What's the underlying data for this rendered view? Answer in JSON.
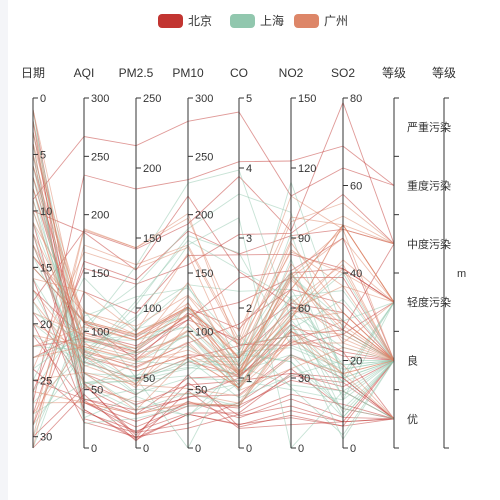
{
  "colors": {
    "axis": "#333333",
    "label": "#333333"
  },
  "chart_data": {
    "type": "parallel",
    "legend": [
      {
        "name": "北京",
        "color": "#c23531"
      },
      {
        "name": "上海",
        "color": "#91c7ae"
      },
      {
        "name": "广州",
        "color": "#dd8668"
      }
    ],
    "axes": [
      {
        "name": "日期",
        "kind": "value",
        "min": 0,
        "max": 31,
        "inverse": true,
        "ticks": [
          0,
          5,
          10,
          15,
          20,
          25,
          30
        ]
      },
      {
        "name": "AQI",
        "kind": "value",
        "min": 0,
        "max": 300,
        "ticks": [
          0,
          50,
          100,
          150,
          200,
          250,
          300
        ]
      },
      {
        "name": "PM2.5",
        "kind": "value",
        "min": 0,
        "max": 250,
        "ticks": [
          0,
          50,
          100,
          150,
          200,
          250
        ]
      },
      {
        "name": "PM10",
        "kind": "value",
        "min": 0,
        "max": 300,
        "ticks": [
          0,
          50,
          100,
          150,
          200,
          250,
          300
        ]
      },
      {
        "name": "CO",
        "kind": "value",
        "min": 0,
        "max": 5,
        "ticks": [
          0,
          1,
          2,
          3,
          4,
          5
        ]
      },
      {
        "name": "NO2",
        "kind": "value",
        "min": 0,
        "max": 150,
        "ticks": [
          0,
          30,
          60,
          90,
          120,
          150
        ]
      },
      {
        "name": "SO2",
        "kind": "value",
        "min": 0,
        "max": 80,
        "ticks": [
          0,
          20,
          40,
          60,
          80
        ]
      },
      {
        "name": "等级",
        "kind": "category",
        "categories": [
          "优",
          "良",
          "轻度污染",
          "中度污染",
          "重度污染",
          "严重污染"
        ]
      },
      {
        "name": "等级",
        "kind": "category",
        "categories": [
          "m"
        ]
      }
    ],
    "series": [
      {
        "name": "北京",
        "data": [
          [
            1,
            55,
            9,
            56,
            0.46,
            18,
            6,
            "良"
          ],
          [
            2,
            25,
            11,
            21,
            0.65,
            34,
            9,
            "优"
          ],
          [
            3,
            56,
            7,
            63,
            0.3,
            14,
            5,
            "良"
          ],
          [
            4,
            33,
            7,
            29,
            0.33,
            16,
            6,
            "优"
          ],
          [
            5,
            42,
            24,
            44,
            0.76,
            40,
            16,
            "优"
          ],
          [
            6,
            82,
            58,
            90,
            1.77,
            68,
            33,
            "良"
          ],
          [
            7,
            74,
            49,
            77,
            1.46,
            48,
            27,
            "良"
          ],
          [
            8,
            78,
            55,
            80,
            1.29,
            59,
            29,
            "良"
          ],
          [
            9,
            267,
            216,
            280,
            4.8,
            108,
            64,
            "重度污染"
          ],
          [
            10,
            185,
            127,
            216,
            2.52,
            61,
            27,
            "中度污染"
          ],
          [
            11,
            39,
            19,
            38,
            0.57,
            31,
            15,
            "优"
          ],
          [
            12,
            41,
            11,
            40,
            0.43,
            21,
            7,
            "优"
          ],
          [
            13,
            64,
            38,
            74,
            1.04,
            46,
            22,
            "良"
          ],
          [
            14,
            108,
            79,
            120,
            1.7,
            75,
            41,
            "轻度污染"
          ],
          [
            15,
            108,
            63,
            116,
            1.48,
            44,
            26,
            "轻度污染"
          ],
          [
            16,
            33,
            6,
            29,
            0.34,
            13,
            5,
            "优"
          ],
          [
            17,
            94,
            66,
            110,
            1.54,
            62,
            31,
            "良"
          ],
          [
            18,
            186,
            142,
            192,
            3.88,
            93,
            79,
            "中度污染"
          ],
          [
            19,
            57,
            31,
            54,
            0.96,
            32,
            14,
            "良"
          ],
          [
            20,
            22,
            8,
            17,
            0.48,
            23,
            10,
            "优"
          ],
          [
            21,
            39,
            15,
            36,
            0.61,
            29,
            13,
            "优"
          ],
          [
            22,
            94,
            69,
            114,
            2.08,
            73,
            39,
            "良"
          ],
          [
            23,
            99,
            73,
            110,
            2.43,
            76,
            48,
            "良"
          ],
          [
            24,
            31,
            12,
            30,
            0.5,
            32,
            16,
            "优"
          ],
          [
            25,
            42,
            27,
            43,
            1.0,
            53,
            22,
            "优"
          ],
          [
            26,
            154,
            117,
            157,
            3.05,
            92,
            58,
            "中度污染"
          ],
          [
            27,
            234,
            185,
            230,
            4.09,
            123,
            69,
            "重度污染"
          ],
          [
            28,
            160,
            120,
            186,
            2.77,
            91,
            50,
            "中度污染"
          ],
          [
            29,
            134,
            96,
            165,
            2.76,
            83,
            41,
            "轻度污染"
          ],
          [
            30,
            52,
            24,
            60,
            1.03,
            50,
            21,
            "良"
          ],
          [
            31,
            46,
            5,
            49,
            0.28,
            10,
            6,
            "优"
          ]
        ]
      },
      {
        "name": "上海",
        "data": [
          [
            1,
            26,
            37,
            27,
            1.163,
            27,
            13,
            "优"
          ],
          [
            2,
            85,
            62,
            71,
            1.195,
            60,
            8,
            "良"
          ],
          [
            3,
            78,
            38,
            74,
            1.363,
            37,
            7,
            "良"
          ],
          [
            4,
            21,
            21,
            36,
            0.634,
            40,
            9,
            "优"
          ],
          [
            5,
            41,
            42,
            46,
            0.915,
            81,
            13,
            "优"
          ],
          [
            6,
            56,
            52,
            69,
            1.067,
            92,
            16,
            "良"
          ],
          [
            7,
            64,
            30,
            28,
            0.924,
            51,
            2,
            "良"
          ],
          [
            8,
            55,
            48,
            74,
            1.236,
            75,
            26,
            "良"
          ],
          [
            9,
            76,
            85,
            113,
            1.237,
            114,
            27,
            "良"
          ],
          [
            10,
            91,
            81,
            104,
            1.041,
            56,
            40,
            "良"
          ],
          [
            11,
            84,
            39,
            60,
            0.964,
            25,
            11,
            "良"
          ],
          [
            12,
            64,
            51,
            101,
            0.862,
            58,
            23,
            "良"
          ],
          [
            13,
            70,
            69,
            120,
            1.198,
            65,
            36,
            "良"
          ],
          [
            14,
            77,
            105,
            178,
            2.549,
            64,
            16,
            "良"
          ],
          [
            15,
            109,
            68,
            87,
            0.996,
            74,
            29,
            "轻度污染"
          ],
          [
            16,
            73,
            68,
            97,
            0.905,
            51,
            34,
            "良"
          ],
          [
            17,
            54,
            27,
            47,
            0.592,
            53,
            12,
            "良"
          ],
          [
            18,
            51,
            61,
            97,
            0.811,
            65,
            19,
            "良"
          ],
          [
            19,
            91,
            71,
            121,
            1.374,
            43,
            18,
            "良"
          ],
          [
            20,
            73,
            102,
            182,
            2.787,
            44,
            19,
            "良"
          ],
          [
            21,
            73,
            50,
            76,
            0.717,
            31,
            20,
            "良"
          ],
          [
            22,
            84,
            94,
            140,
            2.238,
            68,
            18,
            "良"
          ],
          [
            23,
            93,
            77,
            104,
            1.165,
            53,
            7,
            "良"
          ],
          [
            24,
            99,
            130,
            227,
            3.97,
            55,
            15,
            "良"
          ],
          [
            25,
            146,
            84,
            139,
            1.094,
            40,
            17,
            "轻度污染"
          ],
          [
            26,
            113,
            108,
            137,
            1.481,
            48,
            15,
            "轻度污染"
          ],
          [
            27,
            81,
            48,
            62,
            1.619,
            26,
            3,
            "良"
          ],
          [
            28,
            56,
            48,
            68,
            1.336,
            37,
            9,
            "良"
          ],
          [
            29,
            82,
            92,
            174,
            3.29,
            0,
            13,
            "良"
          ],
          [
            30,
            106,
            116,
            188,
            3.628,
            101,
            16,
            "轻度污染"
          ],
          [
            31,
            118,
            50,
            0,
            1.383,
            76,
            11,
            "轻度污染"
          ]
        ]
      },
      {
        "name": "广州",
        "data": [
          [
            1,
            91,
            45,
            125,
            0.82,
            34,
            23,
            "良"
          ],
          [
            2,
            65,
            27,
            78,
            0.86,
            45,
            29,
            "良"
          ],
          [
            3,
            83,
            60,
            84,
            1.09,
            73,
            27,
            "良"
          ],
          [
            4,
            109,
            81,
            121,
            1.28,
            68,
            51,
            "轻度污染"
          ],
          [
            5,
            106,
            77,
            114,
            1.07,
            55,
            51,
            "轻度污染"
          ],
          [
            6,
            109,
            81,
            121,
            1.28,
            68,
            51,
            "轻度污染"
          ],
          [
            7,
            106,
            77,
            114,
            1.07,
            55,
            51,
            "轻度污染"
          ],
          [
            8,
            89,
            65,
            78,
            0.86,
            51,
            26,
            "良"
          ],
          [
            9,
            53,
            33,
            47,
            0.64,
            50,
            17,
            "良"
          ],
          [
            10,
            80,
            55,
            80,
            1.01,
            75,
            24,
            "良"
          ],
          [
            11,
            117,
            81,
            124,
            1.03,
            45,
            24,
            "轻度污染"
          ],
          [
            12,
            99,
            71,
            142,
            1.1,
            62,
            42,
            "良"
          ],
          [
            13,
            95,
            69,
            130,
            1.28,
            74,
            50,
            "良"
          ],
          [
            14,
            116,
            87,
            131,
            1.47,
            84,
            40,
            "轻度污染"
          ],
          [
            15,
            108,
            80,
            121,
            1.3,
            85,
            37,
            "轻度污染"
          ],
          [
            16,
            134,
            83,
            167,
            1.16,
            57,
            43,
            "轻度污染"
          ],
          [
            17,
            79,
            43,
            107,
            1.05,
            59,
            37,
            "良"
          ],
          [
            18,
            71,
            46,
            89,
            0.86,
            64,
            25,
            "良"
          ],
          [
            19,
            97,
            71,
            113,
            1.17,
            88,
            31,
            "良"
          ],
          [
            20,
            84,
            57,
            91,
            0.85,
            55,
            31,
            "良"
          ],
          [
            21,
            87,
            63,
            101,
            0.9,
            56,
            41,
            "良"
          ],
          [
            22,
            104,
            77,
            119,
            1.09,
            73,
            48,
            "轻度污染"
          ],
          [
            23,
            87,
            62,
            100,
            1.0,
            72,
            28,
            "良"
          ],
          [
            24,
            168,
            128,
            172,
            1.49,
            97,
            56,
            "中度污染"
          ],
          [
            25,
            65,
            45,
            51,
            0.74,
            39,
            17,
            "良"
          ],
          [
            26,
            39,
            24,
            38,
            0.61,
            47,
            17,
            "优"
          ],
          [
            27,
            39,
            24,
            39,
            0.59,
            50,
            19,
            "优"
          ],
          [
            28,
            93,
            68,
            96,
            1.05,
            79,
            29,
            "良"
          ],
          [
            29,
            188,
            143,
            197,
            1.66,
            99,
            51,
            "中度污染"
          ],
          [
            30,
            174,
            131,
            174,
            1.55,
            108,
            50,
            "中度污染"
          ],
          [
            31,
            187,
            143,
            201,
            1.39,
            89,
            53,
            "中度污染"
          ]
        ]
      }
    ]
  }
}
